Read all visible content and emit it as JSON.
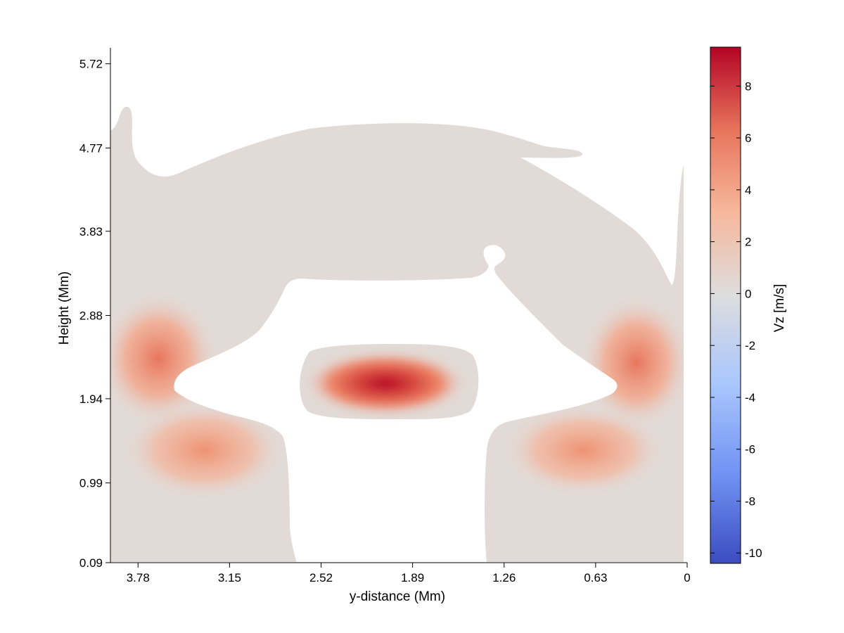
{
  "chart_data": {
    "type": "heatmap",
    "title": "",
    "xlabel": "y-distance (Mm)",
    "ylabel": "Height (Mm)",
    "x_reversed": true,
    "x_ticks": [
      "3.78",
      "3.15",
      "2.52",
      "1.89",
      "1.26",
      "0.63",
      "0"
    ],
    "x_tick_values": [
      3.78,
      3.15,
      2.52,
      1.89,
      1.26,
      0.63,
      0
    ],
    "xlim": [
      3.97,
      0
    ],
    "y_ticks": [
      "0.09",
      "0.99",
      "1.94",
      "2.88",
      "3.83",
      "4.77",
      "5.72"
    ],
    "y_tick_values": [
      0.09,
      0.99,
      1.94,
      2.88,
      3.83,
      4.77,
      5.72
    ],
    "ylim": [
      0.09,
      5.9
    ],
    "colorbar": {
      "label": "Vz [m/s]",
      "colormap": "coolwarm",
      "min": -10.4,
      "max": 9.5,
      "ticks": [
        "8",
        "6",
        "4",
        "2",
        "0",
        "-2",
        "-4",
        "-6",
        "-8",
        "-10"
      ],
      "tick_values": [
        8,
        6,
        4,
        2,
        0,
        -2,
        -4,
        -6,
        -8,
        -10
      ],
      "colors": [
        "#3b4cc0",
        "#6f92f3",
        "#aac7fd",
        "#dddddd",
        "#f7b89c",
        "#e7745b",
        "#b40426"
      ]
    },
    "features": [
      {
        "region": "central blob",
        "peak_vz": 9.2,
        "y_center": 2.05,
        "height_center": 2.05
      },
      {
        "region": "left upper wing",
        "peak_vz": 4.5,
        "y_center": 3.66,
        "height_center": 2.4
      },
      {
        "region": "left lower wing",
        "peak_vz": 3.8,
        "y_center": 3.35,
        "height_center": 1.3
      },
      {
        "region": "right upper wing",
        "peak_vz": 5.0,
        "y_center": 0.3,
        "height_center": 2.35
      },
      {
        "region": "right lower wing",
        "peak_vz": 3.6,
        "y_center": 0.8,
        "height_center": 1.2
      }
    ],
    "background_value": 0
  }
}
